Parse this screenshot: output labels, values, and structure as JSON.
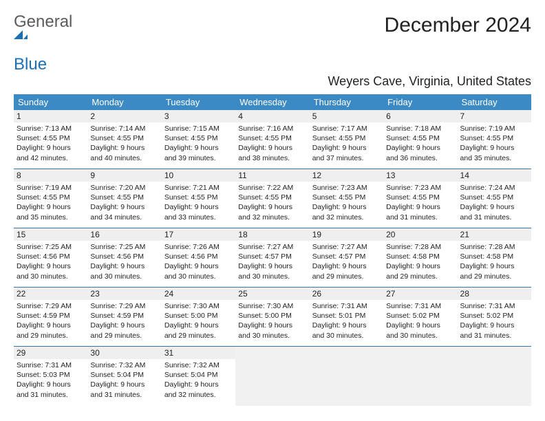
{
  "logo": {
    "word1": "General",
    "word2": "Blue"
  },
  "title": "December 2024",
  "location": "Weyers Cave, Virginia, United States",
  "colors": {
    "header_bg": "#3b8ac4",
    "header_text": "#ffffff",
    "row_divider": "#3b75a8",
    "daynum_bg": "#efefef",
    "empty_bg": "#f1f1f1",
    "page_bg": "#ffffff",
    "text": "#222222",
    "logo_gray": "#5b5b5b",
    "logo_blue": "#1a6fb5"
  },
  "typography": {
    "title_fontsize": 30,
    "location_fontsize": 18,
    "header_fontsize": 13,
    "daynum_fontsize": 12,
    "info_fontsize": 10.5
  },
  "day_headers": [
    "Sunday",
    "Monday",
    "Tuesday",
    "Wednesday",
    "Thursday",
    "Friday",
    "Saturday"
  ],
  "weeks": [
    [
      {
        "n": "1",
        "sr": "Sunrise: 7:13 AM",
        "ss": "Sunset: 4:55 PM",
        "d1": "Daylight: 9 hours",
        "d2": "and 42 minutes."
      },
      {
        "n": "2",
        "sr": "Sunrise: 7:14 AM",
        "ss": "Sunset: 4:55 PM",
        "d1": "Daylight: 9 hours",
        "d2": "and 40 minutes."
      },
      {
        "n": "3",
        "sr": "Sunrise: 7:15 AM",
        "ss": "Sunset: 4:55 PM",
        "d1": "Daylight: 9 hours",
        "d2": "and 39 minutes."
      },
      {
        "n": "4",
        "sr": "Sunrise: 7:16 AM",
        "ss": "Sunset: 4:55 PM",
        "d1": "Daylight: 9 hours",
        "d2": "and 38 minutes."
      },
      {
        "n": "5",
        "sr": "Sunrise: 7:17 AM",
        "ss": "Sunset: 4:55 PM",
        "d1": "Daylight: 9 hours",
        "d2": "and 37 minutes."
      },
      {
        "n": "6",
        "sr": "Sunrise: 7:18 AM",
        "ss": "Sunset: 4:55 PM",
        "d1": "Daylight: 9 hours",
        "d2": "and 36 minutes."
      },
      {
        "n": "7",
        "sr": "Sunrise: 7:19 AM",
        "ss": "Sunset: 4:55 PM",
        "d1": "Daylight: 9 hours",
        "d2": "and 35 minutes."
      }
    ],
    [
      {
        "n": "8",
        "sr": "Sunrise: 7:19 AM",
        "ss": "Sunset: 4:55 PM",
        "d1": "Daylight: 9 hours",
        "d2": "and 35 minutes."
      },
      {
        "n": "9",
        "sr": "Sunrise: 7:20 AM",
        "ss": "Sunset: 4:55 PM",
        "d1": "Daylight: 9 hours",
        "d2": "and 34 minutes."
      },
      {
        "n": "10",
        "sr": "Sunrise: 7:21 AM",
        "ss": "Sunset: 4:55 PM",
        "d1": "Daylight: 9 hours",
        "d2": "and 33 minutes."
      },
      {
        "n": "11",
        "sr": "Sunrise: 7:22 AM",
        "ss": "Sunset: 4:55 PM",
        "d1": "Daylight: 9 hours",
        "d2": "and 32 minutes."
      },
      {
        "n": "12",
        "sr": "Sunrise: 7:23 AM",
        "ss": "Sunset: 4:55 PM",
        "d1": "Daylight: 9 hours",
        "d2": "and 32 minutes."
      },
      {
        "n": "13",
        "sr": "Sunrise: 7:23 AM",
        "ss": "Sunset: 4:55 PM",
        "d1": "Daylight: 9 hours",
        "d2": "and 31 minutes."
      },
      {
        "n": "14",
        "sr": "Sunrise: 7:24 AM",
        "ss": "Sunset: 4:55 PM",
        "d1": "Daylight: 9 hours",
        "d2": "and 31 minutes."
      }
    ],
    [
      {
        "n": "15",
        "sr": "Sunrise: 7:25 AM",
        "ss": "Sunset: 4:56 PM",
        "d1": "Daylight: 9 hours",
        "d2": "and 30 minutes."
      },
      {
        "n": "16",
        "sr": "Sunrise: 7:25 AM",
        "ss": "Sunset: 4:56 PM",
        "d1": "Daylight: 9 hours",
        "d2": "and 30 minutes."
      },
      {
        "n": "17",
        "sr": "Sunrise: 7:26 AM",
        "ss": "Sunset: 4:56 PM",
        "d1": "Daylight: 9 hours",
        "d2": "and 30 minutes."
      },
      {
        "n": "18",
        "sr": "Sunrise: 7:27 AM",
        "ss": "Sunset: 4:57 PM",
        "d1": "Daylight: 9 hours",
        "d2": "and 30 minutes."
      },
      {
        "n": "19",
        "sr": "Sunrise: 7:27 AM",
        "ss": "Sunset: 4:57 PM",
        "d1": "Daylight: 9 hours",
        "d2": "and 29 minutes."
      },
      {
        "n": "20",
        "sr": "Sunrise: 7:28 AM",
        "ss": "Sunset: 4:58 PM",
        "d1": "Daylight: 9 hours",
        "d2": "and 29 minutes."
      },
      {
        "n": "21",
        "sr": "Sunrise: 7:28 AM",
        "ss": "Sunset: 4:58 PM",
        "d1": "Daylight: 9 hours",
        "d2": "and 29 minutes."
      }
    ],
    [
      {
        "n": "22",
        "sr": "Sunrise: 7:29 AM",
        "ss": "Sunset: 4:59 PM",
        "d1": "Daylight: 9 hours",
        "d2": "and 29 minutes."
      },
      {
        "n": "23",
        "sr": "Sunrise: 7:29 AM",
        "ss": "Sunset: 4:59 PM",
        "d1": "Daylight: 9 hours",
        "d2": "and 29 minutes."
      },
      {
        "n": "24",
        "sr": "Sunrise: 7:30 AM",
        "ss": "Sunset: 5:00 PM",
        "d1": "Daylight: 9 hours",
        "d2": "and 29 minutes."
      },
      {
        "n": "25",
        "sr": "Sunrise: 7:30 AM",
        "ss": "Sunset: 5:00 PM",
        "d1": "Daylight: 9 hours",
        "d2": "and 30 minutes."
      },
      {
        "n": "26",
        "sr": "Sunrise: 7:31 AM",
        "ss": "Sunset: 5:01 PM",
        "d1": "Daylight: 9 hours",
        "d2": "and 30 minutes."
      },
      {
        "n": "27",
        "sr": "Sunrise: 7:31 AM",
        "ss": "Sunset: 5:02 PM",
        "d1": "Daylight: 9 hours",
        "d2": "and 30 minutes."
      },
      {
        "n": "28",
        "sr": "Sunrise: 7:31 AM",
        "ss": "Sunset: 5:02 PM",
        "d1": "Daylight: 9 hours",
        "d2": "and 31 minutes."
      }
    ],
    [
      {
        "n": "29",
        "sr": "Sunrise: 7:31 AM",
        "ss": "Sunset: 5:03 PM",
        "d1": "Daylight: 9 hours",
        "d2": "and 31 minutes."
      },
      {
        "n": "30",
        "sr": "Sunrise: 7:32 AM",
        "ss": "Sunset: 5:04 PM",
        "d1": "Daylight: 9 hours",
        "d2": "and 31 minutes."
      },
      {
        "n": "31",
        "sr": "Sunrise: 7:32 AM",
        "ss": "Sunset: 5:04 PM",
        "d1": "Daylight: 9 hours",
        "d2": "and 32 minutes."
      },
      null,
      null,
      null,
      null
    ]
  ]
}
